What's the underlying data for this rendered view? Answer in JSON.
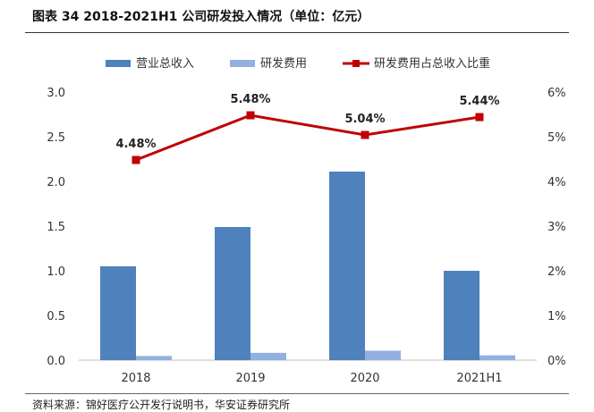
{
  "header": {
    "title": "图表 34 2018-2021H1 公司研发投入情况（单位：亿元）"
  },
  "footer": {
    "source": "资料来源：锦好医疗公开发行说明书，华安证券研究所"
  },
  "colors": {
    "revenue": "#4f81bd",
    "rd": "#92b0e0",
    "ratio": "#c00000"
  },
  "chart_data": {
    "type": "bar",
    "categories": [
      "2018",
      "2019",
      "2020",
      "2021H1"
    ],
    "series": [
      {
        "name": "营业总收入",
        "type": "bar",
        "axis": "left",
        "values": [
          1.05,
          1.49,
          2.11,
          1.0
        ]
      },
      {
        "name": "研发费用",
        "type": "bar",
        "axis": "left",
        "values": [
          0.047,
          0.082,
          0.106,
          0.054
        ]
      },
      {
        "name": "研发费用占总收入比重",
        "type": "line",
        "axis": "right",
        "values": [
          4.48,
          5.48,
          5.04,
          5.44
        ],
        "labels": [
          "4.48%",
          "5.48%",
          "5.04%",
          "5.44%"
        ]
      }
    ],
    "y_left": {
      "range": [
        0,
        3.0
      ],
      "ticks": [
        "0.0",
        "0.5",
        "1.0",
        "1.5",
        "2.0",
        "2.5",
        "3.0"
      ]
    },
    "y_right": {
      "range": [
        0,
        6
      ],
      "ticks": [
        "0%",
        "1%",
        "2%",
        "3%",
        "4%",
        "5%",
        "6%"
      ]
    },
    "legend_position": "top",
    "grid": false
  }
}
